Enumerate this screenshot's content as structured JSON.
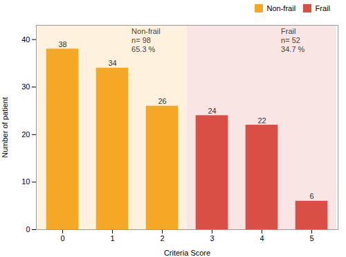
{
  "chart_data": {
    "type": "bar",
    "categories": [
      0,
      1,
      2,
      3,
      4,
      5
    ],
    "series": [
      {
        "name": "Non-frail",
        "color": "#F5A826",
        "values": [
          38,
          34,
          26,
          null,
          null,
          null
        ]
      },
      {
        "name": "Frail",
        "color": "#D94F45",
        "values": [
          null,
          null,
          null,
          24,
          22,
          6
        ]
      }
    ],
    "xlabel": "Criteria Score",
    "ylabel": "Number of patient",
    "ylim": [
      0,
      43
    ],
    "yticks": [
      0,
      10,
      20,
      30,
      40
    ],
    "data_labels": true,
    "grid": false,
    "legend": "top-right",
    "annotations": [
      {
        "lines": [
          "Non-frail",
          "n= 98",
          "65.3 %"
        ]
      },
      {
        "lines": [
          "Frail",
          "n= 52",
          "34.7 %"
        ]
      }
    ]
  }
}
